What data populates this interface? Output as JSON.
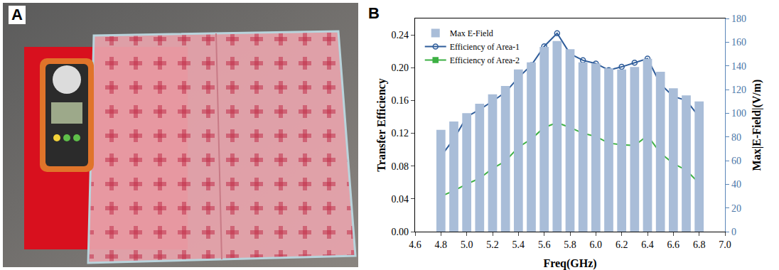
{
  "panel_labels": [
    "A",
    "B"
  ],
  "chart_data": {
    "type": "combo",
    "x_label": "Freq(GHz)",
    "y_label": "Transfer Efficiency",
    "y2_label": "Max|E-Field|(V/m)",
    "x": [
      4.8,
      4.9,
      5.0,
      5.1,
      5.2,
      5.3,
      5.4,
      5.5,
      5.6,
      5.7,
      5.8,
      5.9,
      6.0,
      6.1,
      6.2,
      6.3,
      6.4,
      6.5,
      6.6,
      6.7,
      6.8
    ],
    "series": [
      {
        "name": "Max E-Field",
        "type": "bar",
        "axis": "y2",
        "color": "#a9bdd8",
        "values": [
          86,
          93,
          100,
          108,
          116,
          123,
          137,
          143,
          156,
          161,
          154,
          143,
          142,
          138,
          137,
          139,
          146,
          135,
          121,
          115,
          110
        ]
      },
      {
        "name": "Efficiency of Area-1",
        "type": "line",
        "color": "#2e5c9a",
        "marker": "circle-open",
        "line_style": "solid",
        "values": [
          0.092,
          0.113,
          0.14,
          0.149,
          0.159,
          0.17,
          0.188,
          0.203,
          0.226,
          0.242,
          0.217,
          0.209,
          0.205,
          0.197,
          0.201,
          0.206,
          0.211,
          0.18,
          0.165,
          0.16,
          0.14
        ]
      },
      {
        "name": "Efficiency of Area-2",
        "type": "line",
        "color": "#3cb043",
        "marker": "square",
        "line_style": "solid",
        "values": [
          0.043,
          0.05,
          0.058,
          0.065,
          0.077,
          0.086,
          0.103,
          0.113,
          0.127,
          0.133,
          0.127,
          0.12,
          0.116,
          0.108,
          0.106,
          0.105,
          0.117,
          0.096,
          0.083,
          0.075,
          0.059
        ]
      }
    ],
    "xlim": [
      4.6,
      7.0
    ],
    "xticks": [
      4.6,
      4.8,
      {
        "value": 5,
        "label": "5.0"
      },
      5.2,
      5.4,
      5.6,
      5.8,
      {
        "value": 6,
        "label": "6.0"
      },
      6.2,
      6.4,
      6.6,
      6.8,
      {
        "value": 7,
        "label": "7.0"
      }
    ],
    "ylim": [
      0,
      0.26
    ],
    "yticks": [
      {
        "value": 0,
        "label": "0.00"
      },
      0.04,
      0.08,
      {
        "value": 0.12,
        "label": "0.12"
      },
      {
        "value": 0.16,
        "label": "0.16"
      },
      {
        "value": 0.2,
        "label": "0.20"
      },
      0.24
    ],
    "y2lim": [
      0,
      180
    ],
    "y2ticks": [
      0,
      20,
      40,
      60,
      80,
      100,
      120,
      140,
      160,
      180
    ],
    "legend": "top left",
    "grid": false
  }
}
